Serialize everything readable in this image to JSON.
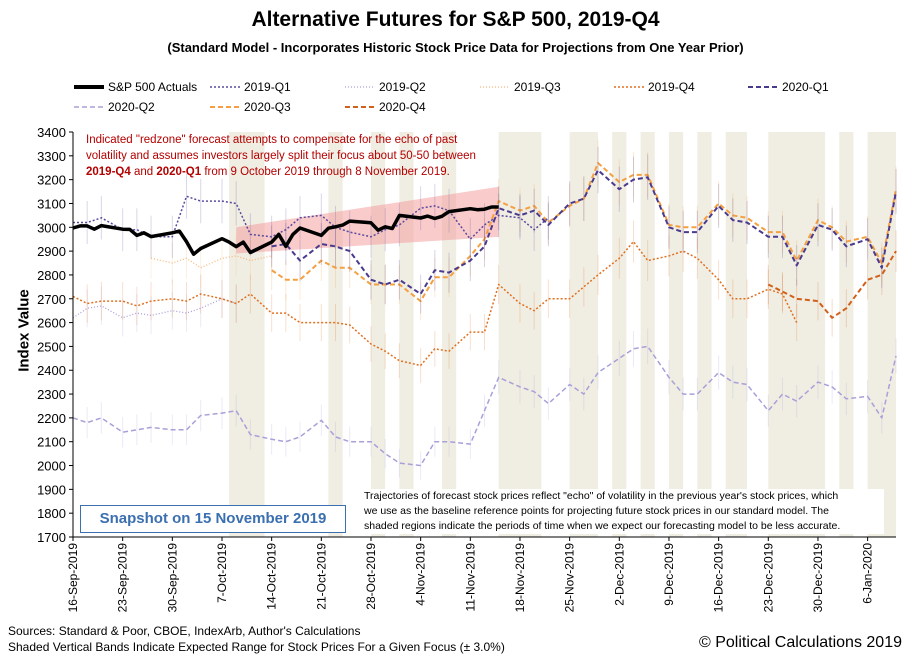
{
  "chart_data": {
    "type": "line",
    "title": "Alternative Futures for S&P 500, 2019-Q4",
    "subtitle": "(Standard Model - Incorporates Historic Stock Price Data for Projections from One Year Prior)",
    "xlabel": "",
    "ylabel": "Index Value",
    "ylim": [
      1700,
      3400
    ],
    "yticks": [
      "1700",
      "1800",
      "1900",
      "2000",
      "2100",
      "2200",
      "2300",
      "2400",
      "2500",
      "2600",
      "2700",
      "2800",
      "2900",
      "3000",
      "3100",
      "3200",
      "3300",
      "3400"
    ],
    "xticks": [
      "16-Sep-2019",
      "23-Sep-2019",
      "30-Sep-2019",
      "7-Oct-2019",
      "14-Oct-2019",
      "21-Oct-2019",
      "28-Oct-2019",
      "4-Nov-2019",
      "11-Nov-2019",
      "18-Nov-2019",
      "25-Nov-2019",
      "2-Dec-2019",
      "9-Dec-2019",
      "16-Dec-2019",
      "23-Dec-2019",
      "30-Dec-2019",
      "6-Jan-2020"
    ],
    "x_range_days": [
      0,
      116
    ],
    "legend": [
      {
        "key": "actual",
        "label": "S&P 500 Actuals"
      },
      {
        "key": "q1_19",
        "label": "2019-Q1"
      },
      {
        "key": "q2_19",
        "label": "2019-Q2"
      },
      {
        "key": "q3_19",
        "label": "2019-Q3"
      },
      {
        "key": "q4_19",
        "label": "2019-Q4"
      },
      {
        "key": "q1_20",
        "label": "2020-Q1"
      },
      {
        "key": "q2_20",
        "label": "2020-Q2"
      },
      {
        "key": "q3_20",
        "label": "2020-Q3"
      },
      {
        "key": "q4_20",
        "label": "2020-Q4"
      }
    ],
    "series": [
      {
        "key": "actual",
        "name": "S&P 500 Actuals",
        "color": "#000000",
        "dash": "",
        "width": 3.5,
        "x": [
          0,
          1,
          2,
          3,
          4,
          7,
          8,
          9,
          10,
          11,
          14,
          15,
          16,
          17,
          18,
          21,
          22,
          23,
          24,
          25,
          28,
          29,
          30,
          31,
          32,
          35,
          36,
          37,
          38,
          39,
          42,
          43,
          44,
          45,
          46,
          49,
          50,
          51,
          52,
          53,
          56,
          57,
          58,
          59,
          60
        ],
        "y": [
          2997,
          3006,
          3006,
          2992,
          3007,
          2992,
          2991,
          2966,
          2977,
          2961,
          2977,
          2984,
          2940,
          2887,
          2911,
          2952,
          2938,
          2919,
          2938,
          2894,
          2938,
          2970,
          2920,
          2970,
          2997,
          2966,
          2996,
          3002,
          3009,
          3026,
          3019,
          2988,
          3002,
          2995,
          3050,
          3039,
          3047,
          3037,
          3046,
          3066,
          3078,
          3074,
          3076,
          3085,
          3085
        ]
      },
      {
        "key": "q1_19",
        "name": "2019-Q1",
        "color": "#5a4a9e",
        "dash": "2,2",
        "width": 1.5,
        "x": [
          0,
          2,
          4,
          7,
          9,
          11,
          14,
          16,
          18,
          21,
          23,
          25,
          28,
          30,
          32,
          35,
          37,
          39,
          42,
          44,
          46,
          49,
          51,
          53,
          56,
          58,
          60,
          63,
          65,
          67
        ],
        "y": [
          3020,
          3020,
          3040,
          2990,
          2990,
          2960,
          2960,
          3130,
          3110,
          3110,
          3100,
          2970,
          2960,
          2990,
          3040,
          3050,
          3000,
          2980,
          2960,
          2990,
          3010,
          3080,
          3090,
          3070,
          2950,
          3010,
          3050,
          3040,
          2990,
          3040
        ]
      },
      {
        "key": "q2_19",
        "name": "2019-Q2",
        "color": "#a8a0d8",
        "dash": "1,2",
        "width": 1.3,
        "x": [
          0,
          2,
          4,
          7,
          9,
          11,
          14,
          16,
          18,
          21,
          23
        ],
        "y": [
          2620,
          2660,
          2670,
          2620,
          2640,
          2630,
          2650,
          2640,
          2660,
          2700,
          2680
        ]
      },
      {
        "key": "q3_19",
        "name": "2019-Q3",
        "color": "#f5b87a",
        "dash": "1,2",
        "width": 1.3,
        "x": [
          11,
          14,
          16,
          18,
          21,
          23,
          25,
          28
        ],
        "y": [
          2870,
          2850,
          2870,
          2830,
          2870,
          2880,
          2860,
          2880
        ]
      },
      {
        "key": "q4_19",
        "name": "2019-Q4",
        "color": "#e07020",
        "dash": "2,2",
        "width": 1.5,
        "x": [
          0,
          2,
          4,
          7,
          9,
          11,
          14,
          16,
          18,
          21,
          23,
          25,
          28,
          30,
          32,
          35,
          37,
          39,
          42,
          44,
          46,
          49,
          51,
          53,
          56,
          58,
          60,
          63,
          65,
          67,
          70,
          72,
          74,
          77,
          79,
          81,
          84,
          86,
          88,
          91,
          93,
          95,
          98,
          100,
          102
        ],
        "y": [
          2710,
          2680,
          2690,
          2690,
          2670,
          2690,
          2700,
          2690,
          2720,
          2700,
          2680,
          2720,
          2640,
          2640,
          2600,
          2600,
          2600,
          2590,
          2510,
          2480,
          2440,
          2420,
          2490,
          2480,
          2560,
          2560,
          2760,
          2680,
          2650,
          2700,
          2700,
          2750,
          2800,
          2870,
          2940,
          2860,
          2880,
          2900,
          2870,
          2780,
          2700,
          2700,
          2740,
          2720,
          2600
        ]
      },
      {
        "key": "q1_20",
        "name": "2020-Q1",
        "color": "#4a3a8e",
        "dash": "5,3",
        "width": 2,
        "x": [
          28,
          30,
          32,
          35,
          37,
          39,
          42,
          44,
          46,
          49,
          51,
          53,
          56,
          58,
          60,
          63,
          65,
          67,
          70,
          72,
          74,
          77,
          79,
          81,
          84,
          86,
          88,
          91,
          93,
          95,
          98,
          100,
          102,
          105,
          107,
          109,
          112,
          114,
          116
        ],
        "y": [
          2920,
          2930,
          2860,
          2930,
          2920,
          2900,
          2780,
          2760,
          2780,
          2720,
          2820,
          2810,
          2860,
          2920,
          3080,
          3050,
          3070,
          3010,
          3100,
          3120,
          3240,
          3160,
          3200,
          3210,
          3000,
          2980,
          2980,
          3090,
          3030,
          3020,
          2960,
          2960,
          2840,
          3010,
          2990,
          2920,
          2950,
          2830,
          3150
        ]
      },
      {
        "key": "q2_20",
        "name": "2020-Q2",
        "color": "#a8a0d8",
        "dash": "5,3",
        "width": 1.5,
        "x": [
          0,
          2,
          4,
          7,
          9,
          11,
          14,
          16,
          18,
          21,
          23,
          25,
          28,
          30,
          32,
          35,
          37,
          39,
          42,
          44,
          46,
          49,
          51,
          53,
          56,
          58,
          60,
          63,
          65,
          67,
          70,
          72,
          74,
          77,
          79,
          81,
          84,
          86,
          88,
          91,
          93,
          95,
          98,
          100,
          102,
          105,
          107,
          109,
          112,
          114,
          116
        ],
        "y": [
          2200,
          2180,
          2200,
          2140,
          2150,
          2160,
          2150,
          2150,
          2210,
          2220,
          2230,
          2130,
          2110,
          2100,
          2120,
          2190,
          2120,
          2100,
          2100,
          2050,
          2010,
          2000,
          2100,
          2100,
          2090,
          2230,
          2370,
          2330,
          2310,
          2260,
          2340,
          2300,
          2390,
          2450,
          2490,
          2500,
          2370,
          2300,
          2300,
          2390,
          2350,
          2340,
          2230,
          2300,
          2270,
          2350,
          2330,
          2280,
          2290,
          2200,
          2460
        ]
      },
      {
        "key": "q3_20",
        "name": "2020-Q3",
        "color": "#f5a040",
        "dash": "5,3",
        "width": 2,
        "x": [
          28,
          30,
          32,
          35,
          37,
          39,
          42,
          44,
          46,
          49,
          51,
          53,
          56,
          58,
          60,
          63,
          65,
          67,
          70,
          72,
          74,
          77,
          79,
          81,
          84,
          86,
          88,
          91,
          93,
          95,
          98,
          100,
          102,
          105,
          107,
          109,
          112,
          114,
          116
        ],
        "y": [
          2820,
          2780,
          2780,
          2860,
          2830,
          2830,
          2760,
          2760,
          2760,
          2690,
          2790,
          2790,
          2880,
          2950,
          3110,
          3070,
          3090,
          3020,
          3090,
          3120,
          3270,
          3190,
          3220,
          3220,
          3010,
          3000,
          3000,
          3100,
          3050,
          3040,
          2980,
          2980,
          2860,
          3030,
          3000,
          2940,
          2960,
          2850,
          3160
        ]
      },
      {
        "key": "q4_20",
        "name": "2020-Q4",
        "color": "#d0601a",
        "dash": "5,3",
        "width": 2,
        "x": [
          98,
          100,
          102,
          105,
          107,
          109,
          112,
          114,
          116
        ],
        "y": [
          2760,
          2730,
          2700,
          2690,
          2620,
          2660,
          2780,
          2800,
          2900
        ]
      }
    ],
    "redzone": {
      "x_start": 23,
      "x_end": 60,
      "y_low_start": 2890,
      "y_high_start": 3000,
      "y_low_end": 2960,
      "y_high_end": 3170
    },
    "shaded_bands_days": [
      [
        22,
        27
      ],
      [
        36,
        38
      ],
      [
        42,
        44
      ],
      [
        46,
        48
      ],
      [
        52,
        54
      ],
      [
        60,
        66
      ],
      [
        70,
        74
      ],
      [
        76,
        78
      ],
      [
        80,
        82
      ],
      [
        84,
        86
      ],
      [
        88,
        90
      ],
      [
        92,
        95
      ],
      [
        98,
        106
      ],
      [
        108,
        110
      ],
      [
        112,
        116
      ]
    ]
  },
  "notes": {
    "redzone_line1": "Indicated \"redzone\" forecast attempts to compensate for the echo of past",
    "redzone_line2": "volatility and assumes investors largely split their focus about 50-50 between",
    "redzone_q4": "2019-Q4",
    "redzone_and": "and",
    "redzone_q1": "2020-Q1",
    "redzone_line3_tail": "from 9 October 2019 through 8 November 2019.",
    "trajectories_line1": "Trajectories of forecast stock prices reflect \"echo\" of volatility in  the previous year's stock prices, which",
    "trajectories_line2": "we use as the baseline reference points for projecting future stock prices in our standard model.   The",
    "trajectories_line3": "shaded regions indicate the periods of time when we expect our forecasting model to be less accurate."
  },
  "snapshot": "Snapshot on 15 November 2019",
  "footer": {
    "sources": "Sources: Standard & Poor, CBOE, IndexArb, Author's Calculations",
    "shaded": "Shaded Vertical Bands Indicate Expected Range for Stock Prices For a Given Focus (± 3.0%)",
    "copyright": "© Political Calculations 2019"
  }
}
